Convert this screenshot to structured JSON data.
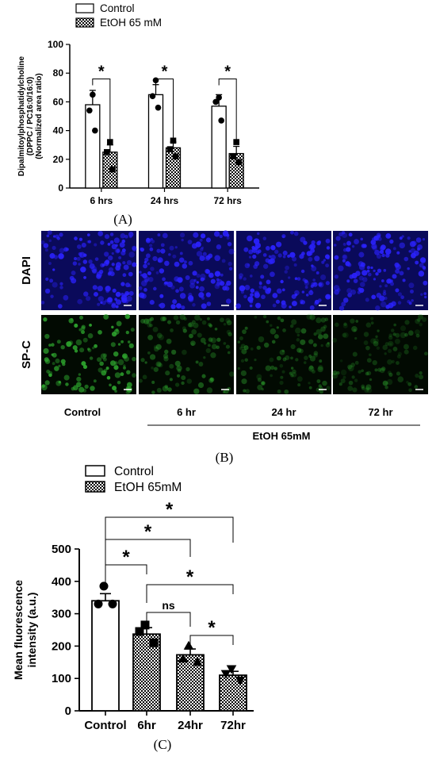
{
  "panel_labels": {
    "a": "(A)",
    "b": "(B)",
    "c": "(C)"
  },
  "colors": {
    "dapi": "#1a10c8",
    "spc": "#1f7a1f",
    "ink": "#000000"
  },
  "panel_b": {
    "rows": [
      "DAPI",
      "SP-C"
    ],
    "columns": [
      "Control",
      "6 hr",
      "24 hr",
      "72 hr"
    ],
    "group_label": "EtOH 65mM",
    "spc_intensity": [
      1.0,
      0.55,
      0.5,
      0.38
    ]
  },
  "chart_data": [
    {
      "type": "bar",
      "panel": "A",
      "categories": [
        "6 hrs",
        "24 hrs",
        "72 hrs"
      ],
      "ylabel": "Dipalmitoylphosphatidylcholine (DPPC / PC16:0/16:0) (Normalized area ratio)",
      "ylabel_lines": [
        "Dipalmitoylphosphatidylcholine",
        "(DPPC / PC16:0/16:0)",
        "(Normalized area ratio)"
      ],
      "ylim": [
        0,
        100
      ],
      "yticks": [
        0,
        20,
        40,
        60,
        80,
        100
      ],
      "legend": "top-left",
      "series": [
        {
          "name": "Control",
          "fill": "open",
          "marker": "circle",
          "values": [
            58,
            65,
            57
          ],
          "errors": [
            10,
            7,
            8
          ],
          "points": [
            [
              65,
              54,
              40
            ],
            [
              75,
              64,
              56
            ],
            [
              63,
              60,
              47
            ]
          ]
        },
        {
          "name": "EtOH 65 mM",
          "fill": "checker",
          "marker": "square",
          "values": [
            25,
            28,
            24
          ],
          "errors": [
            5,
            4,
            5
          ],
          "points": [
            [
              32,
              25,
              13
            ],
            [
              33,
              27,
              22
            ],
            [
              32,
              22,
              18
            ]
          ]
        }
      ],
      "annotations": [
        {
          "from": "6 hrs",
          "to": "6 hrs",
          "text": "*"
        },
        {
          "from": "24 hrs",
          "to": "24 hrs",
          "text": "*"
        },
        {
          "from": "72 hrs",
          "to": "72 hrs",
          "text": "*"
        }
      ]
    },
    {
      "type": "bar",
      "panel": "C",
      "categories": [
        "Control",
        "6hr",
        "24hr",
        "72hr"
      ],
      "ylabel": "Mean fluorescence intensity (a.u.)",
      "ylabel_lines": [
        "Mean fluorescence",
        "intensity (a.u.)"
      ],
      "ylim": [
        0,
        500
      ],
      "yticks": [
        0,
        100,
        200,
        300,
        400,
        500
      ],
      "legend": "top-left",
      "legend_entries": [
        "Control",
        "EtOH 65mM"
      ],
      "values": [
        340,
        237,
        173,
        110
      ],
      "errors": [
        22,
        20,
        18,
        12
      ],
      "fills": [
        "open",
        "checker",
        "checker",
        "checker"
      ],
      "markers": [
        "circle",
        "square",
        "triangle-up",
        "triangle-down"
      ],
      "points": [
        [
          385,
          330,
          330
        ],
        [
          265,
          245,
          210
        ],
        [
          200,
          160,
          150
        ],
        [
          130,
          115,
          95
        ]
      ],
      "annotations": [
        {
          "from": "Control",
          "to": "72hr",
          "text": "*"
        },
        {
          "from": "Control",
          "to": "24hr",
          "text": "*"
        },
        {
          "from": "Control",
          "to": "6hr",
          "text": "*"
        },
        {
          "from": "6hr",
          "to": "72hr",
          "text": "*"
        },
        {
          "from": "6hr",
          "to": "24hr",
          "text": "ns"
        },
        {
          "from": "24hr",
          "to": "72hr",
          "text": "*"
        }
      ]
    }
  ]
}
